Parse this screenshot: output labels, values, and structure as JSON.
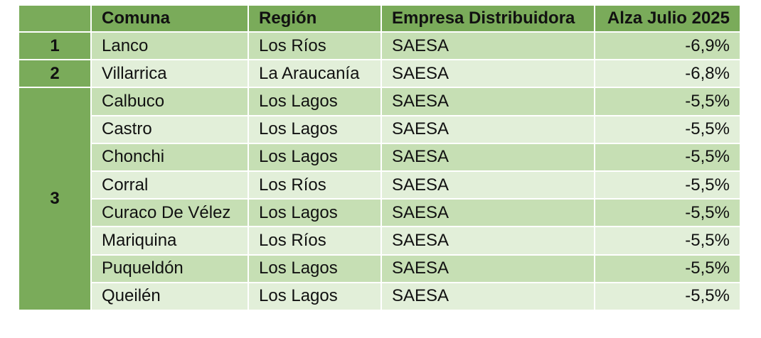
{
  "table": {
    "header": [
      "Comuna",
      "Región",
      "Empresa Distribuidora",
      "Alza Julio 2025"
    ],
    "groups": [
      {
        "rank": "1",
        "rows": [
          [
            "Lanco",
            "Los Ríos",
            "SAESA",
            "-6,9%"
          ]
        ]
      },
      {
        "rank": "2",
        "rows": [
          [
            "Villarrica",
            "La Araucanía",
            "SAESA",
            "-6,8%"
          ]
        ]
      },
      {
        "rank": "3",
        "rows": [
          [
            "Calbuco",
            "Los Lagos",
            "SAESA",
            "-5,5%"
          ],
          [
            "Castro",
            "Los Lagos",
            "SAESA",
            "-5,5%"
          ],
          [
            "Chonchi",
            "Los Lagos",
            "SAESA",
            "-5,5%"
          ],
          [
            "Corral",
            "Los Ríos",
            "SAESA",
            "-5,5%"
          ],
          [
            "Curaco De Vélez",
            "Los Lagos",
            "SAESA",
            "-5,5%"
          ],
          [
            "Mariquina",
            "Los Ríos",
            "SAESA",
            "-5,5%"
          ],
          [
            "Puqueldón",
            "Los Lagos",
            "SAESA",
            "-5,5%"
          ],
          [
            "Queilén",
            "Los Lagos",
            "SAESA",
            "-5,5%"
          ]
        ]
      }
    ]
  }
}
